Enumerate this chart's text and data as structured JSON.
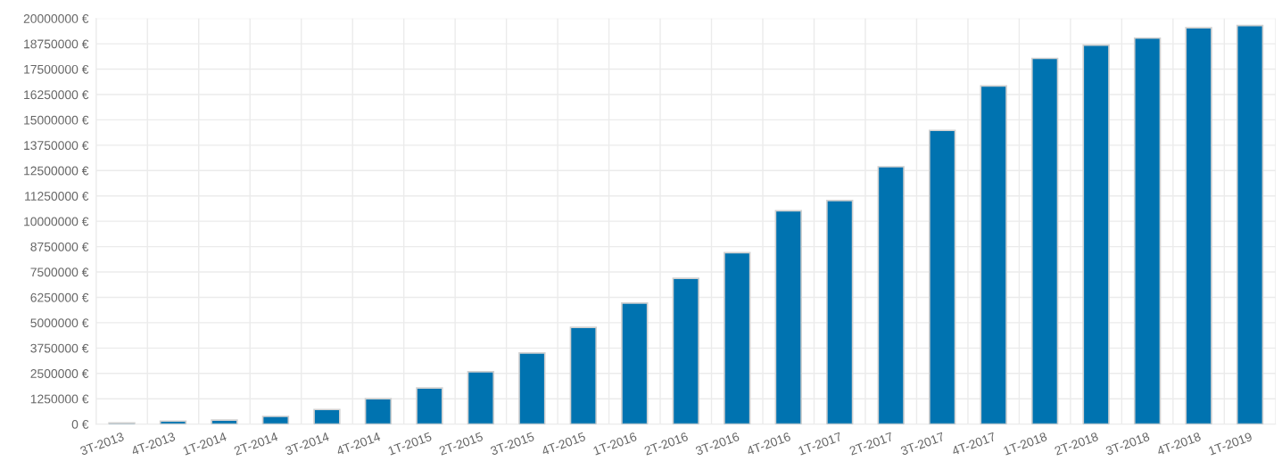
{
  "chart_data": {
    "type": "bar",
    "categories": [
      "3T-2013",
      "4T-2013",
      "1T-2014",
      "2T-2014",
      "3T-2014",
      "4T-2014",
      "1T-2015",
      "2T-2015",
      "3T-2015",
      "4T-2015",
      "1T-2016",
      "2T-2016",
      "3T-2016",
      "4T-2016",
      "1T-2017",
      "2T-2017",
      "3T-2017",
      "4T-2017",
      "1T-2018",
      "2T-2018",
      "3T-2018",
      "4T-2018",
      "1T-2019"
    ],
    "values": [
      60000,
      150000,
      200000,
      380000,
      720000,
      1250000,
      1780000,
      2580000,
      3510000,
      4770000,
      5970000,
      7190000,
      8450000,
      10520000,
      11020000,
      12690000,
      14480000,
      16670000,
      18030000,
      18680000,
      19030000,
      19540000,
      19650000
    ],
    "color": "#0073b0",
    "ylim": [
      0,
      20000000
    ],
    "yticks": [
      {
        "value": 0,
        "label": "0 €"
      },
      {
        "value": 1250000,
        "label": "1250000 €"
      },
      {
        "value": 2500000,
        "label": "2500000 €"
      },
      {
        "value": 3750000,
        "label": "3750000 €"
      },
      {
        "value": 5000000,
        "label": "5000000 €"
      },
      {
        "value": 6250000,
        "label": "6250000 €"
      },
      {
        "value": 7500000,
        "label": "7500000 €"
      },
      {
        "value": 8750000,
        "label": "8750000 €"
      },
      {
        "value": 10000000,
        "label": "10000000 €"
      },
      {
        "value": 11250000,
        "label": "11250000 €"
      },
      {
        "value": 12500000,
        "label": "12500000 €"
      },
      {
        "value": 13750000,
        "label": "13750000 €"
      },
      {
        "value": 15000000,
        "label": "15000000 €"
      },
      {
        "value": 16250000,
        "label": "16250000 €"
      },
      {
        "value": 17500000,
        "label": "17500000 €"
      },
      {
        "value": 18750000,
        "label": "18750000 €"
      },
      {
        "value": 20000000,
        "label": "20000000 €"
      }
    ],
    "grid": true
  }
}
